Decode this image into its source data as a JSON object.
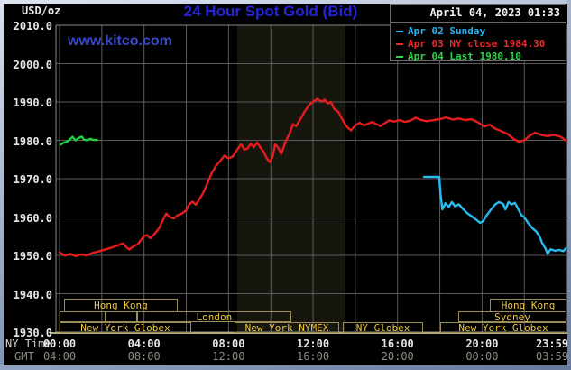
{
  "header": {
    "unit_label": "USD/oz",
    "title": "24 Hour Spot Gold (Bid)",
    "datetime": "April 04, 2023 01:33",
    "watermark": "www.kitco.com"
  },
  "legend": {
    "items": [
      {
        "label": "Apr 02 Sunday",
        "color": "#29b2f2"
      },
      {
        "label": "Apr 03 NY close 1984.30",
        "color": "#ef2929"
      },
      {
        "label": "Apr 04 Last 1980.10",
        "color": "#2ed248"
      }
    ]
  },
  "axis": {
    "ny_label": "NY Time",
    "gmt_label": "GMT",
    "ny_ticks": [
      "00:00",
      "04:00",
      "08:00",
      "12:00",
      "16:00",
      "20:00",
      "23:59"
    ],
    "gmt_ticks": [
      "04:00",
      "08:00",
      "12:00",
      "16:00",
      "20:00",
      "00:00",
      "03:59"
    ],
    "tick_hours": [
      0,
      4,
      8,
      12,
      16,
      20,
      23.98
    ],
    "y_ticks": [
      2010,
      2000,
      1990,
      1980,
      1970,
      1960,
      1950,
      1940,
      1930
    ]
  },
  "colors": {
    "title": "#2525d6",
    "grid": "#5a5a5a",
    "frame": "#8a8a8a",
    "band": "#16160e",
    "bottom_rule": "#b3a97c",
    "session_border": "#9a8d57",
    "session_text": "#edc53f"
  },
  "chart_data": {
    "type": "line",
    "title": "24 Hour Spot Gold (Bid)",
    "ylabel": "USD/oz",
    "ylim": [
      1930,
      2010
    ],
    "xlim_hours": [
      0,
      24
    ],
    "grid": true,
    "legend_position": "top-right",
    "nymex_floor_band_hours": [
      8.41,
      13.53
    ],
    "series": [
      {
        "name": "Apr 02 Sunday",
        "color": "#25bdf2",
        "points": [
          [
            17.25,
            1970.5
          ],
          [
            17.97,
            1970.5
          ],
          [
            18.03,
            1966.0
          ],
          [
            18.12,
            1962.0
          ],
          [
            18.27,
            1963.6
          ],
          [
            18.42,
            1962.6
          ],
          [
            18.57,
            1963.9
          ],
          [
            18.72,
            1962.8
          ],
          [
            18.9,
            1963.3
          ],
          [
            19.1,
            1962.1
          ],
          [
            19.3,
            1961.0
          ],
          [
            19.5,
            1960.2
          ],
          [
            19.7,
            1959.4
          ],
          [
            19.9,
            1958.5
          ],
          [
            20.05,
            1958.9
          ],
          [
            20.2,
            1960.3
          ],
          [
            20.4,
            1961.8
          ],
          [
            20.6,
            1963.2
          ],
          [
            20.8,
            1963.9
          ],
          [
            21.0,
            1963.4
          ],
          [
            21.1,
            1962.0
          ],
          [
            21.25,
            1963.9
          ],
          [
            21.4,
            1963.3
          ],
          [
            21.55,
            1963.7
          ],
          [
            21.7,
            1962.2
          ],
          [
            21.85,
            1960.6
          ],
          [
            22.0,
            1959.9
          ],
          [
            22.2,
            1958.3
          ],
          [
            22.4,
            1957.0
          ],
          [
            22.55,
            1956.3
          ],
          [
            22.7,
            1955.2
          ],
          [
            22.85,
            1953.2
          ],
          [
            23.0,
            1951.8
          ],
          [
            23.1,
            1950.4
          ],
          [
            23.25,
            1951.6
          ],
          [
            23.45,
            1951.2
          ],
          [
            23.65,
            1951.4
          ],
          [
            23.85,
            1951.1
          ],
          [
            23.98,
            1951.9
          ]
        ]
      },
      {
        "name": "Apr 03",
        "color": "#e81c1c",
        "ny_close": 1984.3,
        "points": [
          [
            0,
            1950.8
          ],
          [
            0.25,
            1949.9
          ],
          [
            0.5,
            1950.4
          ],
          [
            0.75,
            1949.8
          ],
          [
            1.0,
            1950.2
          ],
          [
            1.3,
            1950.0
          ],
          [
            1.6,
            1950.7
          ],
          [
            1.9,
            1951.1
          ],
          [
            2.2,
            1951.6
          ],
          [
            2.5,
            1952.1
          ],
          [
            2.8,
            1952.7
          ],
          [
            3.0,
            1953.1
          ],
          [
            3.15,
            1952.2
          ],
          [
            3.3,
            1951.5
          ],
          [
            3.5,
            1952.4
          ],
          [
            3.7,
            1952.9
          ],
          [
            3.85,
            1954.0
          ],
          [
            4.0,
            1955.0
          ],
          [
            4.15,
            1955.3
          ],
          [
            4.3,
            1954.5
          ],
          [
            4.5,
            1955.6
          ],
          [
            4.7,
            1957.0
          ],
          [
            4.9,
            1959.3
          ],
          [
            5.05,
            1960.9
          ],
          [
            5.2,
            1960.1
          ],
          [
            5.4,
            1959.6
          ],
          [
            5.6,
            1960.5
          ],
          [
            5.8,
            1960.9
          ],
          [
            6.0,
            1961.8
          ],
          [
            6.15,
            1963.4
          ],
          [
            6.3,
            1964.0
          ],
          [
            6.45,
            1963.2
          ],
          [
            6.6,
            1964.5
          ],
          [
            6.8,
            1966.3
          ],
          [
            7.0,
            1968.8
          ],
          [
            7.2,
            1971.4
          ],
          [
            7.4,
            1973.3
          ],
          [
            7.6,
            1974.6
          ],
          [
            7.8,
            1976.0
          ],
          [
            8.0,
            1975.3
          ],
          [
            8.2,
            1975.8
          ],
          [
            8.4,
            1977.5
          ],
          [
            8.6,
            1979.0
          ],
          [
            8.75,
            1977.5
          ],
          [
            8.9,
            1977.9
          ],
          [
            9.05,
            1979.1
          ],
          [
            9.2,
            1978.2
          ],
          [
            9.35,
            1979.4
          ],
          [
            9.5,
            1978.2
          ],
          [
            9.65,
            1977.1
          ],
          [
            9.8,
            1975.4
          ],
          [
            9.95,
            1974.3
          ],
          [
            10.1,
            1976.0
          ],
          [
            10.2,
            1979.0
          ],
          [
            10.35,
            1978.1
          ],
          [
            10.5,
            1976.5
          ],
          [
            10.7,
            1979.7
          ],
          [
            10.9,
            1981.9
          ],
          [
            11.05,
            1984.2
          ],
          [
            11.2,
            1983.7
          ],
          [
            11.4,
            1985.5
          ],
          [
            11.6,
            1987.5
          ],
          [
            11.8,
            1989.1
          ],
          [
            12.0,
            1990.1
          ],
          [
            12.2,
            1990.8
          ],
          [
            12.4,
            1990.1
          ],
          [
            12.55,
            1990.6
          ],
          [
            12.7,
            1989.6
          ],
          [
            12.85,
            1990.0
          ],
          [
            13.0,
            1988.2
          ],
          [
            13.2,
            1987.4
          ],
          [
            13.4,
            1985.3
          ],
          [
            13.6,
            1983.5
          ],
          [
            13.8,
            1982.6
          ],
          [
            14.0,
            1983.9
          ],
          [
            14.2,
            1984.6
          ],
          [
            14.4,
            1983.9
          ],
          [
            14.6,
            1984.3
          ],
          [
            14.8,
            1984.8
          ],
          [
            15.0,
            1984.2
          ],
          [
            15.2,
            1983.7
          ],
          [
            15.4,
            1984.5
          ],
          [
            15.6,
            1985.2
          ],
          [
            15.85,
            1984.9
          ],
          [
            16.1,
            1985.3
          ],
          [
            16.35,
            1984.8
          ],
          [
            16.6,
            1985.1
          ],
          [
            16.85,
            1985.9
          ],
          [
            17.1,
            1985.3
          ],
          [
            17.4,
            1985.0
          ],
          [
            17.7,
            1985.3
          ],
          [
            18.0,
            1985.5
          ],
          [
            18.3,
            1986.0
          ],
          [
            18.6,
            1985.4
          ],
          [
            18.9,
            1985.7
          ],
          [
            19.2,
            1985.3
          ],
          [
            19.5,
            1985.5
          ],
          [
            19.8,
            1984.7
          ],
          [
            20.1,
            1983.6
          ],
          [
            20.35,
            1984.1
          ],
          [
            20.6,
            1983.1
          ],
          [
            20.9,
            1982.4
          ],
          [
            21.2,
            1981.7
          ],
          [
            21.5,
            1980.3
          ],
          [
            21.75,
            1979.6
          ],
          [
            22.0,
            1980.0
          ],
          [
            22.25,
            1981.2
          ],
          [
            22.5,
            1982.0
          ],
          [
            22.8,
            1981.4
          ],
          [
            23.1,
            1981.1
          ],
          [
            23.4,
            1981.4
          ],
          [
            23.7,
            1981.0
          ],
          [
            23.98,
            1979.9
          ]
        ]
      },
      {
        "name": "Apr 04",
        "color": "#1fcf3f",
        "last": 1980.1,
        "points": [
          [
            0.05,
            1978.9
          ],
          [
            0.2,
            1979.4
          ],
          [
            0.35,
            1979.6
          ],
          [
            0.5,
            1980.3
          ],
          [
            0.62,
            1980.9
          ],
          [
            0.75,
            1980.0
          ],
          [
            0.9,
            1980.6
          ],
          [
            1.05,
            1981.0
          ],
          [
            1.15,
            1980.2
          ],
          [
            1.3,
            1980.0
          ],
          [
            1.45,
            1980.4
          ],
          [
            1.6,
            1980.1
          ],
          [
            1.78,
            1980.1
          ]
        ]
      }
    ],
    "sessions": [
      {
        "row": 1,
        "label": "Hong Kong",
        "start_h": 0.21,
        "end_h": 5.59
      },
      {
        "row": 1,
        "label": "Hong Kong",
        "start_h": 20.37,
        "end_h": 24
      },
      {
        "row": 2,
        "label": "",
        "start_h": 0,
        "end_h": 2.18
      },
      {
        "row": 2,
        "label": "",
        "start_h": 2.18,
        "end_h": 3.67
      },
      {
        "row": 2,
        "label": "London",
        "start_h": 3.67,
        "end_h": 10.97
      },
      {
        "row": 2,
        "label": "Sydney",
        "start_h": 18.87,
        "end_h": 24
      },
      {
        "row": 3,
        "label": "New York Globex",
        "start_h": 0,
        "end_h": 6.23
      },
      {
        "row": 3,
        "label": "New York NYMEX",
        "start_h": 8.28,
        "end_h": 13.24
      },
      {
        "row": 3,
        "label": "NY Globex",
        "start_h": 13.41,
        "end_h": 17.21
      },
      {
        "row": 3,
        "label": "New York Globex",
        "start_h": 18.02,
        "end_h": 24
      }
    ]
  }
}
